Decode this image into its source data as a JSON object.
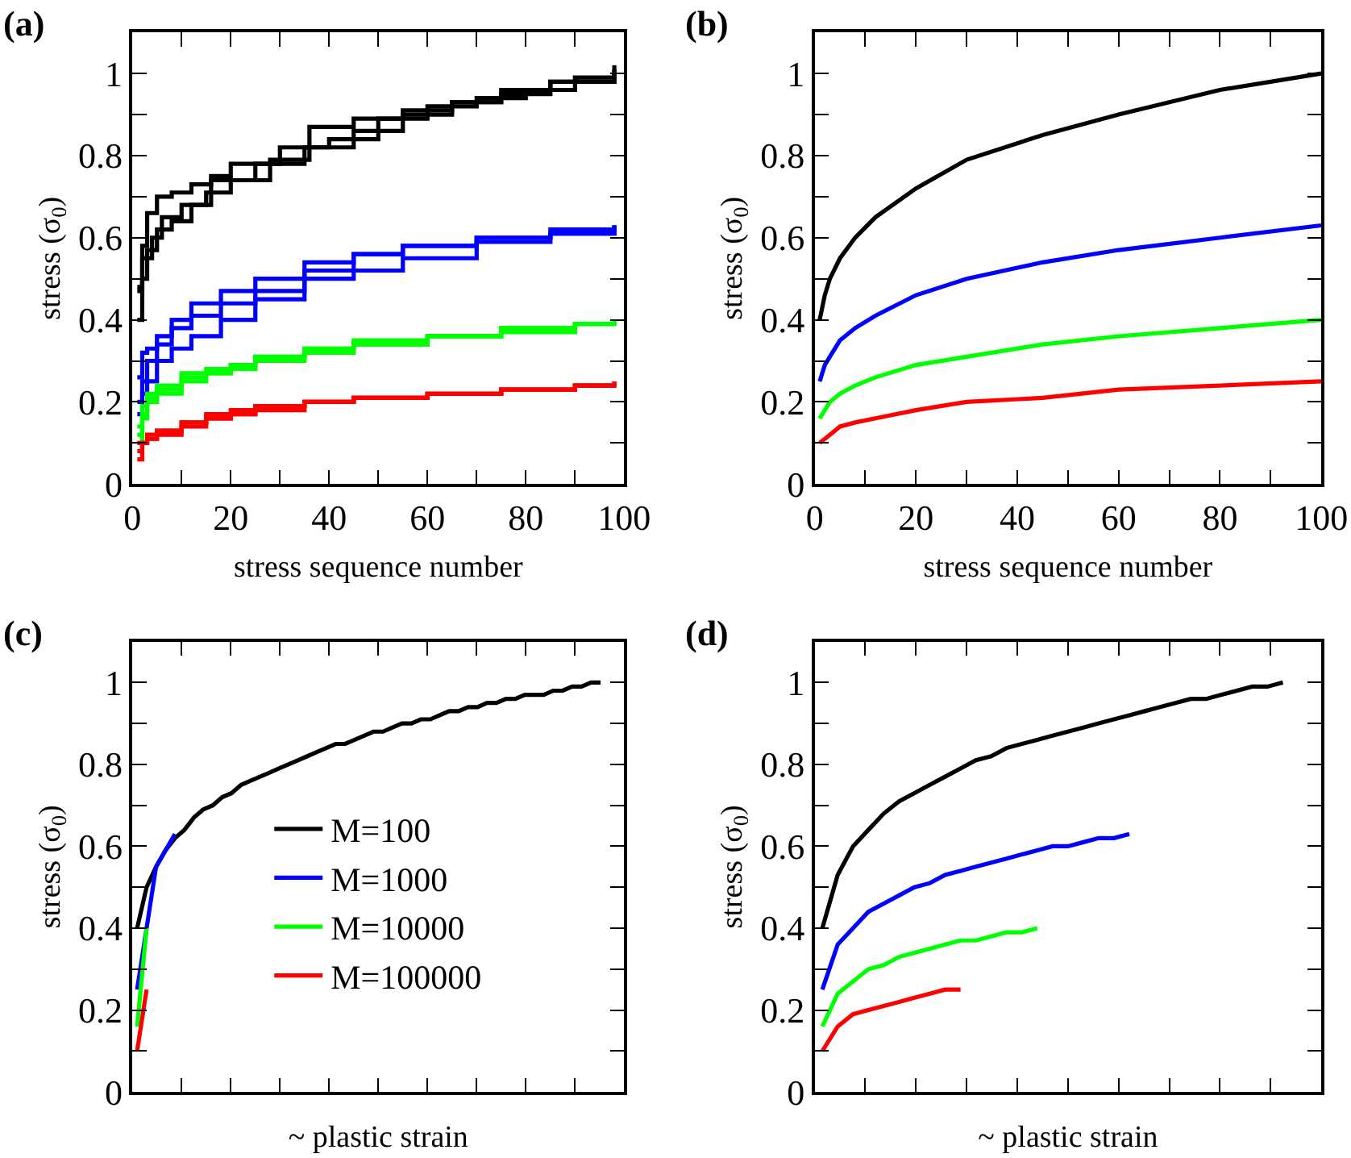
{
  "chart_data": [
    {
      "type": "step",
      "title": "(a)",
      "xlabel": "stress sequence number",
      "ylabel": "stress (σ$_{0}$)",
      "xlim": [
        0,
        100
      ],
      "xticks": [
        0,
        {
          "value": 10,
          "label": null
        },
        20,
        {
          "value": 30,
          "label": null
        },
        40,
        {
          "value": 50,
          "label": null
        },
        60,
        {
          "value": 70,
          "label": null
        },
        80,
        {
          "value": 90,
          "label": null
        },
        100
      ],
      "ylim": [
        0,
        1.1
      ],
      "yticks": [
        0,
        {
          "value": 0.1,
          "label": null
        },
        0.2,
        {
          "value": 0.3,
          "label": null
        },
        0.4,
        {
          "value": 0.5,
          "label": null
        },
        0.6,
        {
          "value": 0.7,
          "label": null
        },
        0.8,
        {
          "value": 0.9,
          "label": null
        },
        1
      ],
      "series": [
        {
          "color": "#000000",
          "x": [
            1,
            2,
            3,
            5,
            8,
            12,
            16,
            20,
            30,
            40,
            50,
            60,
            70,
            80,
            90,
            98
          ],
          "values": [
            0.4,
            0.58,
            0.66,
            0.7,
            0.71,
            0.73,
            0.75,
            0.78,
            0.82,
            0.84,
            0.89,
            0.92,
            0.94,
            0.96,
            0.99,
            1.02
          ]
        },
        {
          "color": "#000000",
          "x": [
            1,
            2,
            4,
            6,
            10,
            15,
            20,
            28,
            36,
            45,
            55,
            65,
            75,
            85,
            98
          ],
          "values": [
            0.47,
            0.55,
            0.6,
            0.65,
            0.68,
            0.71,
            0.74,
            0.79,
            0.87,
            0.89,
            0.91,
            0.93,
            0.95,
            0.98,
            1.0
          ]
        },
        {
          "color": "#000000",
          "x": [
            1,
            2,
            3,
            5,
            8,
            12,
            16,
            25,
            35,
            45,
            55,
            65,
            75,
            85,
            98
          ],
          "values": [
            0.48,
            0.5,
            0.57,
            0.62,
            0.64,
            0.68,
            0.74,
            0.78,
            0.82,
            0.86,
            0.9,
            0.93,
            0.96,
            0.98,
            1.01
          ]
        },
        {
          "color": "#0000ff",
          "x": [
            1,
            2,
            3,
            5,
            8,
            12,
            18,
            25,
            35,
            45,
            55,
            70,
            85,
            98
          ],
          "values": [
            0.26,
            0.32,
            0.33,
            0.36,
            0.4,
            0.44,
            0.47,
            0.5,
            0.54,
            0.56,
            0.58,
            0.6,
            0.61,
            0.63
          ]
        },
        {
          "color": "#0000ff",
          "x": [
            1,
            2,
            3,
            5,
            8,
            12,
            18,
            25,
            35,
            45,
            55,
            70,
            85,
            98
          ],
          "values": [
            0.17,
            0.25,
            0.3,
            0.34,
            0.38,
            0.41,
            0.44,
            0.47,
            0.52,
            0.56,
            0.58,
            0.6,
            0.62,
            0.63
          ]
        },
        {
          "color": "#0000ff",
          "x": [
            1,
            2,
            3,
            5,
            8,
            12,
            18,
            25,
            35,
            45,
            55,
            70,
            85,
            98
          ],
          "values": [
            0.2,
            0.22,
            0.25,
            0.3,
            0.33,
            0.36,
            0.4,
            0.45,
            0.5,
            0.52,
            0.55,
            0.59,
            0.61,
            0.63
          ]
        },
        {
          "color": "#00ff00",
          "x": [
            1,
            2,
            3,
            5,
            10,
            15,
            20,
            25,
            35,
            45,
            60,
            75,
            90,
            98
          ],
          "values": [
            0.1,
            0.16,
            0.22,
            0.24,
            0.27,
            0.28,
            0.29,
            0.3,
            0.33,
            0.35,
            0.36,
            0.37,
            0.39,
            0.4
          ]
        },
        {
          "color": "#00ff00",
          "x": [
            1,
            2,
            3,
            5,
            10,
            15,
            20,
            25,
            35,
            45,
            60,
            75,
            90,
            98
          ],
          "values": [
            0.12,
            0.19,
            0.21,
            0.23,
            0.26,
            0.27,
            0.28,
            0.31,
            0.33,
            0.34,
            0.36,
            0.38,
            0.39,
            0.39
          ]
        },
        {
          "color": "#00ff00",
          "x": [
            1,
            2,
            3,
            5,
            10,
            15,
            20,
            25,
            35,
            45,
            60,
            75,
            90,
            98
          ],
          "values": [
            0.14,
            0.17,
            0.2,
            0.22,
            0.25,
            0.27,
            0.29,
            0.31,
            0.32,
            0.34,
            0.36,
            0.38,
            0.39,
            0.4
          ]
        },
        {
          "color": "#ff0000",
          "x": [
            1,
            2,
            3,
            5,
            10,
            15,
            20,
            25,
            35,
            45,
            60,
            75,
            90,
            98
          ],
          "values": [
            0.06,
            0.1,
            0.11,
            0.12,
            0.15,
            0.16,
            0.17,
            0.18,
            0.2,
            0.21,
            0.22,
            0.23,
            0.24,
            0.25
          ]
        },
        {
          "color": "#ff0000",
          "x": [
            1,
            2,
            3,
            5,
            10,
            15,
            20,
            25,
            35,
            45,
            60,
            75,
            90,
            98
          ],
          "values": [
            0.08,
            0.1,
            0.11,
            0.13,
            0.14,
            0.16,
            0.18,
            0.19,
            0.2,
            0.21,
            0.22,
            0.23,
            0.24,
            0.24
          ]
        },
        {
          "color": "#ff0000",
          "x": [
            1,
            2,
            3,
            5,
            10,
            15,
            20,
            25,
            35,
            45,
            60,
            75,
            90,
            98
          ],
          "values": [
            0.1,
            0.1,
            0.12,
            0.13,
            0.15,
            0.17,
            0.17,
            0.19,
            0.2,
            0.21,
            0.22,
            0.23,
            0.24,
            0.25
          ]
        }
      ]
    },
    {
      "type": "line",
      "title": "(b)",
      "xlabel": "stress sequence number",
      "ylabel": "stress (σ$_{0}$)",
      "xlim": [
        0,
        100
      ],
      "xticks": [
        0,
        {
          "value": 10,
          "label": null
        },
        20,
        {
          "value": 30,
          "label": null
        },
        40,
        {
          "value": 50,
          "label": null
        },
        60,
        {
          "value": 70,
          "label": null
        },
        80,
        {
          "value": 90,
          "label": null
        },
        100
      ],
      "ylim": [
        0,
        1.1
      ],
      "yticks": [
        0,
        {
          "value": 0.1,
          "label": null
        },
        0.2,
        {
          "value": 0.3,
          "label": null
        },
        0.4,
        {
          "value": 0.5,
          "label": null
        },
        0.6,
        {
          "value": 0.7,
          "label": null
        },
        0.8,
        {
          "value": 0.9,
          "label": null
        },
        1
      ],
      "x": [
        1,
        2,
        3,
        5,
        8,
        12,
        20,
        30,
        45,
        60,
        80,
        100
      ],
      "series": [
        {
          "color": "#000000",
          "values": [
            0.4,
            0.46,
            0.5,
            0.55,
            0.6,
            0.65,
            0.72,
            0.79,
            0.85,
            0.9,
            0.96,
            1.0
          ]
        },
        {
          "color": "#0000ff",
          "values": [
            0.25,
            0.29,
            0.31,
            0.35,
            0.38,
            0.41,
            0.46,
            0.5,
            0.54,
            0.57,
            0.6,
            0.63
          ]
        },
        {
          "color": "#00ff00",
          "values": [
            0.16,
            0.18,
            0.2,
            0.22,
            0.24,
            0.26,
            0.29,
            0.31,
            0.34,
            0.36,
            0.38,
            0.4
          ]
        },
        {
          "color": "#ff0000",
          "values": [
            0.1,
            0.11,
            0.12,
            0.14,
            0.15,
            0.16,
            0.18,
            0.2,
            0.21,
            0.23,
            0.24,
            0.25
          ]
        }
      ]
    },
    {
      "type": "line",
      "title": "(c)",
      "xlabel": "~ plastic strain",
      "ylabel": "stress (σ$_{0}$)",
      "categories": [
        null,
        null,
        null,
        null,
        null,
        null,
        null,
        null,
        null,
        null,
        null,
        null,
        null,
        null,
        null,
        null,
        null,
        null,
        null,
        null,
        null,
        null,
        null,
        null,
        null,
        null,
        null,
        null,
        null,
        null,
        null,
        null,
        null,
        null,
        null,
        null,
        null,
        null,
        null,
        null,
        null,
        null,
        null,
        null,
        null,
        null,
        null,
        null,
        null,
        null
      ],
      "ylim": [
        0,
        1.1
      ],
      "yticks": [
        0,
        {
          "value": 0.1,
          "label": null
        },
        0.2,
        {
          "value": 0.3,
          "label": null
        },
        0.4,
        {
          "value": 0.5,
          "label": null
        },
        0.6,
        {
          "value": 0.7,
          "label": null
        },
        0.8,
        {
          "value": 0.9,
          "label": null
        },
        1
      ],
      "tick_labels": "y",
      "legend": "center",
      "series": [
        {
          "name": "M=100",
          "color": "#000000",
          "values": [
            0.4,
            0.5,
            0.55,
            0.59,
            0.62,
            0.64,
            0.67,
            0.69,
            0.7,
            0.72,
            0.73,
            0.75,
            0.76,
            0.77,
            0.78,
            0.79,
            0.8,
            0.81,
            0.82,
            0.83,
            0.84,
            0.85,
            0.85,
            0.86,
            0.87,
            0.88,
            0.88,
            0.89,
            0.9,
            0.9,
            0.91,
            0.91,
            0.92,
            0.93,
            0.93,
            0.94,
            0.94,
            0.95,
            0.95,
            0.96,
            0.96,
            0.97,
            0.97,
            0.97,
            0.98,
            0.98,
            0.99,
            0.99,
            1.0,
            1.0
          ]
        },
        {
          "name": "M=1000",
          "color": "#0000ff",
          "values": [
            0.25,
            0.4,
            0.55,
            0.59,
            0.63,
            null,
            null,
            null,
            null,
            null,
            null,
            null,
            null,
            null,
            null,
            null,
            null,
            null,
            null,
            null,
            null,
            null,
            null,
            null,
            null,
            null,
            null,
            null,
            null,
            null,
            null,
            null,
            null,
            null,
            null,
            null,
            null,
            null,
            null,
            null,
            null,
            null,
            null,
            null,
            null,
            null,
            null,
            null,
            null,
            null
          ]
        },
        {
          "name": "M=10000",
          "color": "#00ff00",
          "values": [
            0.16,
            0.4,
            null,
            null,
            null,
            null,
            null,
            null,
            null,
            null,
            null,
            null,
            null,
            null,
            null,
            null,
            null,
            null,
            null,
            null,
            null,
            null,
            null,
            null,
            null,
            null,
            null,
            null,
            null,
            null,
            null,
            null,
            null,
            null,
            null,
            null,
            null,
            null,
            null,
            null,
            null,
            null,
            null,
            null,
            null,
            null,
            null,
            null,
            null,
            null
          ]
        },
        {
          "name": "M=100000",
          "color": "#ff0000",
          "values": [
            0.1,
            0.25,
            null,
            null,
            null,
            null,
            null,
            null,
            null,
            null,
            null,
            null,
            null,
            null,
            null,
            null,
            null,
            null,
            null,
            null,
            null,
            null,
            null,
            null,
            null,
            null,
            null,
            null,
            null,
            null,
            null,
            null,
            null,
            null,
            null,
            null,
            null,
            null,
            null,
            null,
            null,
            null,
            null,
            null,
            null,
            null,
            null,
            null,
            null,
            null
          ]
        }
      ]
    },
    {
      "type": "line",
      "title": "(d)",
      "xlabel": "~ plastic strain",
      "ylabel": "stress (σ$_{0}$)",
      "categories": [
        null,
        null,
        null,
        null,
        null,
        null,
        null,
        null,
        null,
        null,
        null,
        null,
        null,
        null,
        null,
        null,
        null,
        null,
        null,
        null,
        null,
        null,
        null,
        null,
        null,
        null,
        null,
        null,
        null,
        null,
        null
      ],
      "ylim": [
        0,
        1.1
      ],
      "yticks": [
        0,
        {
          "value": 0.1,
          "label": null
        },
        0.2,
        {
          "value": 0.3,
          "label": null
        },
        0.4,
        {
          "value": 0.5,
          "label": null
        },
        0.6,
        {
          "value": 0.7,
          "label": null
        },
        0.8,
        {
          "value": 0.9,
          "label": null
        },
        1
      ],
      "tick_labels": "y",
      "series": [
        {
          "color": "#000000",
          "values": [
            0.4,
            0.53,
            0.6,
            0.64,
            0.68,
            0.71,
            0.73,
            0.75,
            0.77,
            0.79,
            0.81,
            0.82,
            0.84,
            0.85,
            0.86,
            0.87,
            0.88,
            0.89,
            0.9,
            0.91,
            0.92,
            0.93,
            0.94,
            0.95,
            0.96,
            0.96,
            0.97,
            0.98,
            0.99,
            0.99,
            1.0
          ]
        },
        {
          "color": "#0000ff",
          "values": [
            0.25,
            0.36,
            0.4,
            0.44,
            0.46,
            0.48,
            0.5,
            0.51,
            0.53,
            0.54,
            0.55,
            0.56,
            0.57,
            0.58,
            0.59,
            0.6,
            0.6,
            0.61,
            0.62,
            0.62,
            0.63,
            null,
            null,
            null,
            null,
            null,
            null,
            null,
            null,
            null,
            null
          ]
        },
        {
          "color": "#00ff00",
          "values": [
            0.16,
            0.24,
            0.27,
            0.3,
            0.31,
            0.33,
            0.34,
            0.35,
            0.36,
            0.37,
            0.37,
            0.38,
            0.39,
            0.39,
            0.4,
            null,
            null,
            null,
            null,
            null,
            null,
            null,
            null,
            null,
            null,
            null,
            null,
            null,
            null,
            null,
            null
          ]
        },
        {
          "color": "#ff0000",
          "values": [
            0.1,
            0.16,
            0.19,
            0.2,
            0.21,
            0.22,
            0.23,
            0.24,
            0.25,
            0.25,
            null,
            null,
            null,
            null,
            null,
            null,
            null,
            null,
            null,
            null,
            null,
            null,
            null,
            null,
            null,
            null,
            null,
            null,
            null,
            null,
            null
          ]
        }
      ]
    }
  ]
}
